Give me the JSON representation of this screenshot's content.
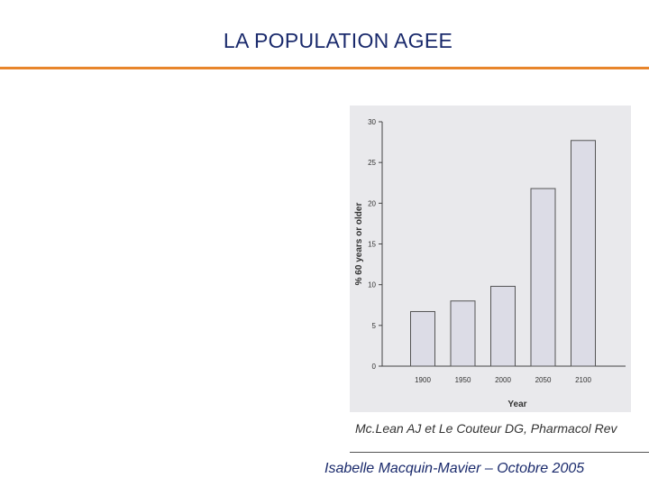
{
  "slide": {
    "title": "LA POPULATION AGEE",
    "citation": "Mc.Lean AJ et Le Couteur DG, Pharmacol Rev",
    "footer": "Isabelle Macquin-Mavier – Octobre 2005",
    "accent_color": "#e8852b",
    "title_color": "#1a2a6c"
  },
  "chart_data": {
    "type": "bar",
    "categories": [
      "1900",
      "1950",
      "2000",
      "2050",
      "2100"
    ],
    "values": [
      6.7,
      8,
      9.8,
      21.8,
      27.7
    ],
    "xlabel": "Year",
    "ylabel": "% 60 years or older",
    "ylim": [
      0,
      30
    ],
    "yticks": [
      0,
      5,
      10,
      15,
      20,
      25,
      30
    ],
    "grid": false,
    "bar_color": "#dcdce6"
  }
}
